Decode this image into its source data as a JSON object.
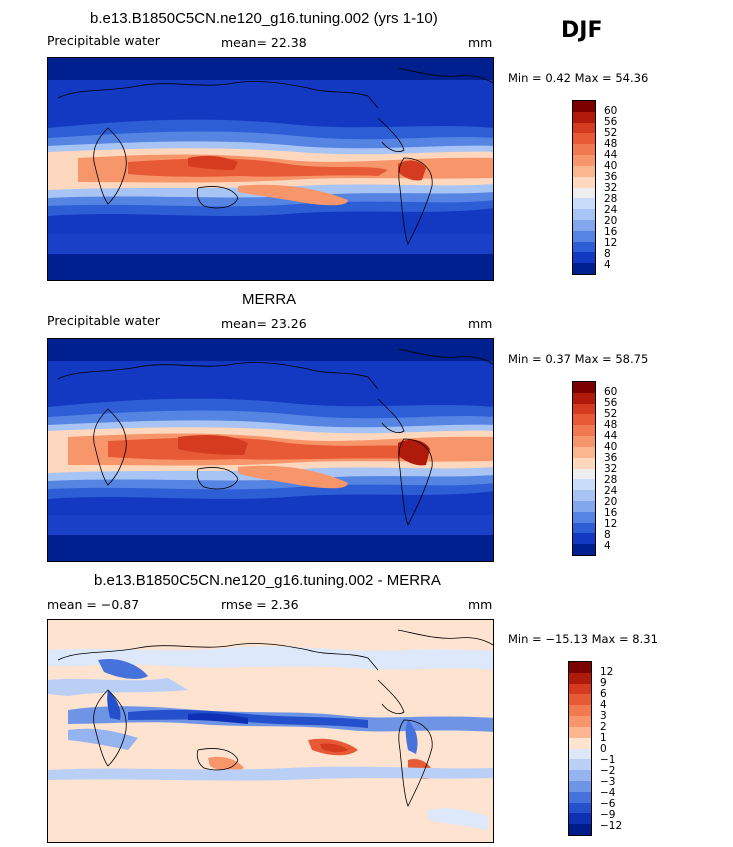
{
  "season": "DJF",
  "panels": [
    {
      "title": "b.e13.B1850C5CN.ne120_g16.tuning.002 (yrs 1-10)",
      "variable": "Precipitable water",
      "mean_text": "mean=  22.38",
      "units": "mm",
      "minmax_text": "Min =   0.42  Max =  54.36",
      "colorbar": {
        "labels": [
          "60",
          "56",
          "52",
          "48",
          "44",
          "40",
          "36",
          "32",
          "28",
          "24",
          "20",
          "16",
          "12",
          "8",
          "4"
        ],
        "colors": [
          "#7b0000",
          "#b01a0a",
          "#d53b1f",
          "#e85a35",
          "#f0794f",
          "#f7956b",
          "#fbb690",
          "#fdd8be",
          "#eeeeee",
          "#c9dcfa",
          "#a8c4f4",
          "#82a7ec",
          "#5584e2",
          "#2e5ed6",
          "#1338c2",
          "#00208f"
        ]
      }
    },
    {
      "title": "MERRA",
      "variable": "Precipitable water",
      "mean_text": "mean=  23.26",
      "units": "mm",
      "minmax_text": "Min =   0.37  Max =  58.75",
      "colorbar": {
        "labels": [
          "60",
          "56",
          "52",
          "48",
          "44",
          "40",
          "36",
          "32",
          "28",
          "24",
          "20",
          "16",
          "12",
          "8",
          "4"
        ],
        "colors": [
          "#7b0000",
          "#b01a0a",
          "#d53b1f",
          "#e85a35",
          "#f0794f",
          "#f7956b",
          "#fbb690",
          "#fdd8be",
          "#eeeeee",
          "#c9dcfa",
          "#a8c4f4",
          "#82a7ec",
          "#5584e2",
          "#2e5ed6",
          "#1338c2",
          "#00208f"
        ]
      }
    },
    {
      "title": "b.e13.B1850C5CN.ne120_g16.tuning.002 - MERRA",
      "mean_text": "mean =  −0.87",
      "rmse_text": "rmse =   2.36",
      "units": "mm",
      "minmax_text": "Min = −15.13  Max =   8.31",
      "colorbar": {
        "labels": [
          "12",
          "9",
          "6",
          "4",
          "3",
          "2",
          "1",
          "0",
          "−1",
          "−2",
          "−3",
          "−4",
          "−6",
          "−9",
          "−12"
        ],
        "colors": [
          "#7b0000",
          "#b01a0a",
          "#d53b1f",
          "#e85a35",
          "#f0794f",
          "#f7956b",
          "#fbb690",
          "#fde3d0",
          "#dde8fb",
          "#b9cff6",
          "#94b3ef",
          "#6e94e6",
          "#4672db",
          "#2450cc",
          "#0d30b4",
          "#001c8a"
        ]
      }
    }
  ]
}
